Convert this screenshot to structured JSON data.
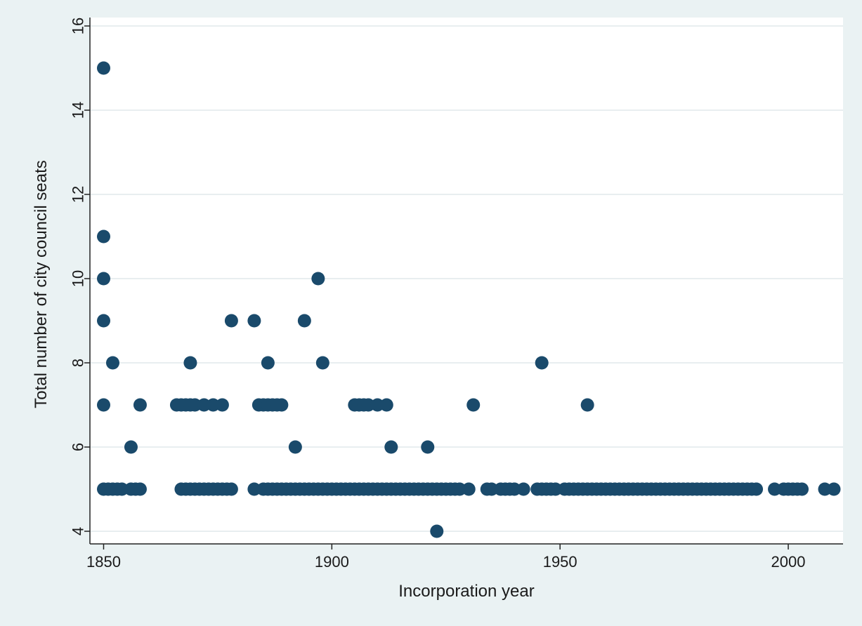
{
  "chart_data": {
    "type": "scatter",
    "title": "",
    "xlabel": "Incorporation year",
    "ylabel": "Total number of city council seats",
    "xlim": [
      1847,
      2012
    ],
    "ylim": [
      3.7,
      16.2
    ],
    "xticks": [
      1850,
      1900,
      1950,
      2000
    ],
    "yticks": [
      4,
      6,
      8,
      10,
      12,
      14,
      16
    ],
    "grid": "horizontal",
    "legend": "none",
    "colors": {
      "background": "#eaf2f3",
      "plot": "#ffffff",
      "marker": "#1a4a6b",
      "grid": "#e8eef0",
      "axis": "#222222"
    },
    "points": [
      [
        1850,
        15
      ],
      [
        1850,
        11
      ],
      [
        1850,
        10
      ],
      [
        1850,
        9
      ],
      [
        1850,
        7
      ],
      [
        1852,
        8
      ],
      [
        1856,
        6
      ],
      [
        1858,
        7
      ],
      [
        1850,
        5
      ],
      [
        1851,
        5
      ],
      [
        1852,
        5
      ],
      [
        1853,
        5
      ],
      [
        1854,
        5
      ],
      [
        1856,
        5
      ],
      [
        1857,
        5
      ],
      [
        1858,
        5
      ],
      [
        1866,
        7
      ],
      [
        1867,
        7
      ],
      [
        1868,
        7
      ],
      [
        1869,
        7
      ],
      [
        1870,
        7
      ],
      [
        1872,
        7
      ],
      [
        1874,
        7
      ],
      [
        1876,
        7
      ],
      [
        1869,
        8
      ],
      [
        1878,
        9
      ],
      [
        1867,
        5
      ],
      [
        1868,
        5
      ],
      [
        1869,
        5
      ],
      [
        1870,
        5
      ],
      [
        1871,
        5
      ],
      [
        1872,
        5
      ],
      [
        1873,
        5
      ],
      [
        1874,
        5
      ],
      [
        1875,
        5
      ],
      [
        1876,
        5
      ],
      [
        1877,
        5
      ],
      [
        1878,
        5
      ],
      [
        1883,
        9
      ],
      [
        1884,
        7
      ],
      [
        1885,
        7
      ],
      [
        1886,
        7
      ],
      [
        1887,
        7
      ],
      [
        1888,
        7
      ],
      [
        1889,
        7
      ],
      [
        1886,
        8
      ],
      [
        1892,
        6
      ],
      [
        1894,
        9
      ],
      [
        1897,
        10
      ],
      [
        1898,
        8
      ],
      [
        1883,
        5
      ],
      [
        1885,
        5
      ],
      [
        1886,
        5
      ],
      [
        1887,
        5
      ],
      [
        1888,
        5
      ],
      [
        1889,
        5
      ],
      [
        1890,
        5
      ],
      [
        1891,
        5
      ],
      [
        1892,
        5
      ],
      [
        1893,
        5
      ],
      [
        1894,
        5
      ],
      [
        1895,
        5
      ],
      [
        1896,
        5
      ],
      [
        1897,
        5
      ],
      [
        1898,
        5
      ],
      [
        1899,
        5
      ],
      [
        1900,
        5
      ],
      [
        1901,
        5
      ],
      [
        1902,
        5
      ],
      [
        1903,
        5
      ],
      [
        1904,
        5
      ],
      [
        1905,
        5
      ],
      [
        1906,
        5
      ],
      [
        1907,
        5
      ],
      [
        1908,
        5
      ],
      [
        1909,
        5
      ],
      [
        1910,
        5
      ],
      [
        1911,
        5
      ],
      [
        1912,
        5
      ],
      [
        1913,
        5
      ],
      [
        1914,
        5
      ],
      [
        1915,
        5
      ],
      [
        1916,
        5
      ],
      [
        1917,
        5
      ],
      [
        1918,
        5
      ],
      [
        1919,
        5
      ],
      [
        1920,
        5
      ],
      [
        1921,
        5
      ],
      [
        1922,
        5
      ],
      [
        1923,
        5
      ],
      [
        1924,
        5
      ],
      [
        1925,
        5
      ],
      [
        1926,
        5
      ],
      [
        1927,
        5
      ],
      [
        1928,
        5
      ],
      [
        1930,
        5
      ],
      [
        1905,
        7
      ],
      [
        1906,
        7
      ],
      [
        1907,
        7
      ],
      [
        1908,
        7
      ],
      [
        1910,
        7
      ],
      [
        1912,
        7
      ],
      [
        1913,
        6
      ],
      [
        1921,
        6
      ],
      [
        1923,
        4
      ],
      [
        1931,
        7
      ],
      [
        1934,
        5
      ],
      [
        1935,
        5
      ],
      [
        1937,
        5
      ],
      [
        1938,
        5
      ],
      [
        1939,
        5
      ],
      [
        1940,
        5
      ],
      [
        1942,
        5
      ],
      [
        1945,
        5
      ],
      [
        1946,
        5
      ],
      [
        1947,
        5
      ],
      [
        1948,
        5
      ],
      [
        1949,
        5
      ],
      [
        1946,
        8
      ],
      [
        1956,
        7
      ],
      [
        1951,
        5
      ],
      [
        1952,
        5
      ],
      [
        1953,
        5
      ],
      [
        1954,
        5
      ],
      [
        1955,
        5
      ],
      [
        1956,
        5
      ],
      [
        1957,
        5
      ],
      [
        1958,
        5
      ],
      [
        1959,
        5
      ],
      [
        1960,
        5
      ],
      [
        1961,
        5
      ],
      [
        1962,
        5
      ],
      [
        1963,
        5
      ],
      [
        1964,
        5
      ],
      [
        1965,
        5
      ],
      [
        1966,
        5
      ],
      [
        1967,
        5
      ],
      [
        1968,
        5
      ],
      [
        1969,
        5
      ],
      [
        1970,
        5
      ],
      [
        1971,
        5
      ],
      [
        1972,
        5
      ],
      [
        1973,
        5
      ],
      [
        1974,
        5
      ],
      [
        1975,
        5
      ],
      [
        1976,
        5
      ],
      [
        1977,
        5
      ],
      [
        1978,
        5
      ],
      [
        1979,
        5
      ],
      [
        1980,
        5
      ],
      [
        1981,
        5
      ],
      [
        1982,
        5
      ],
      [
        1983,
        5
      ],
      [
        1984,
        5
      ],
      [
        1985,
        5
      ],
      [
        1986,
        5
      ],
      [
        1987,
        5
      ],
      [
        1988,
        5
      ],
      [
        1989,
        5
      ],
      [
        1990,
        5
      ],
      [
        1991,
        5
      ],
      [
        1992,
        5
      ],
      [
        1993,
        5
      ],
      [
        1997,
        5
      ],
      [
        1999,
        5
      ],
      [
        2000,
        5
      ],
      [
        2001,
        5
      ],
      [
        2002,
        5
      ],
      [
        2003,
        5
      ],
      [
        2008,
        5
      ],
      [
        2010,
        5
      ]
    ]
  }
}
